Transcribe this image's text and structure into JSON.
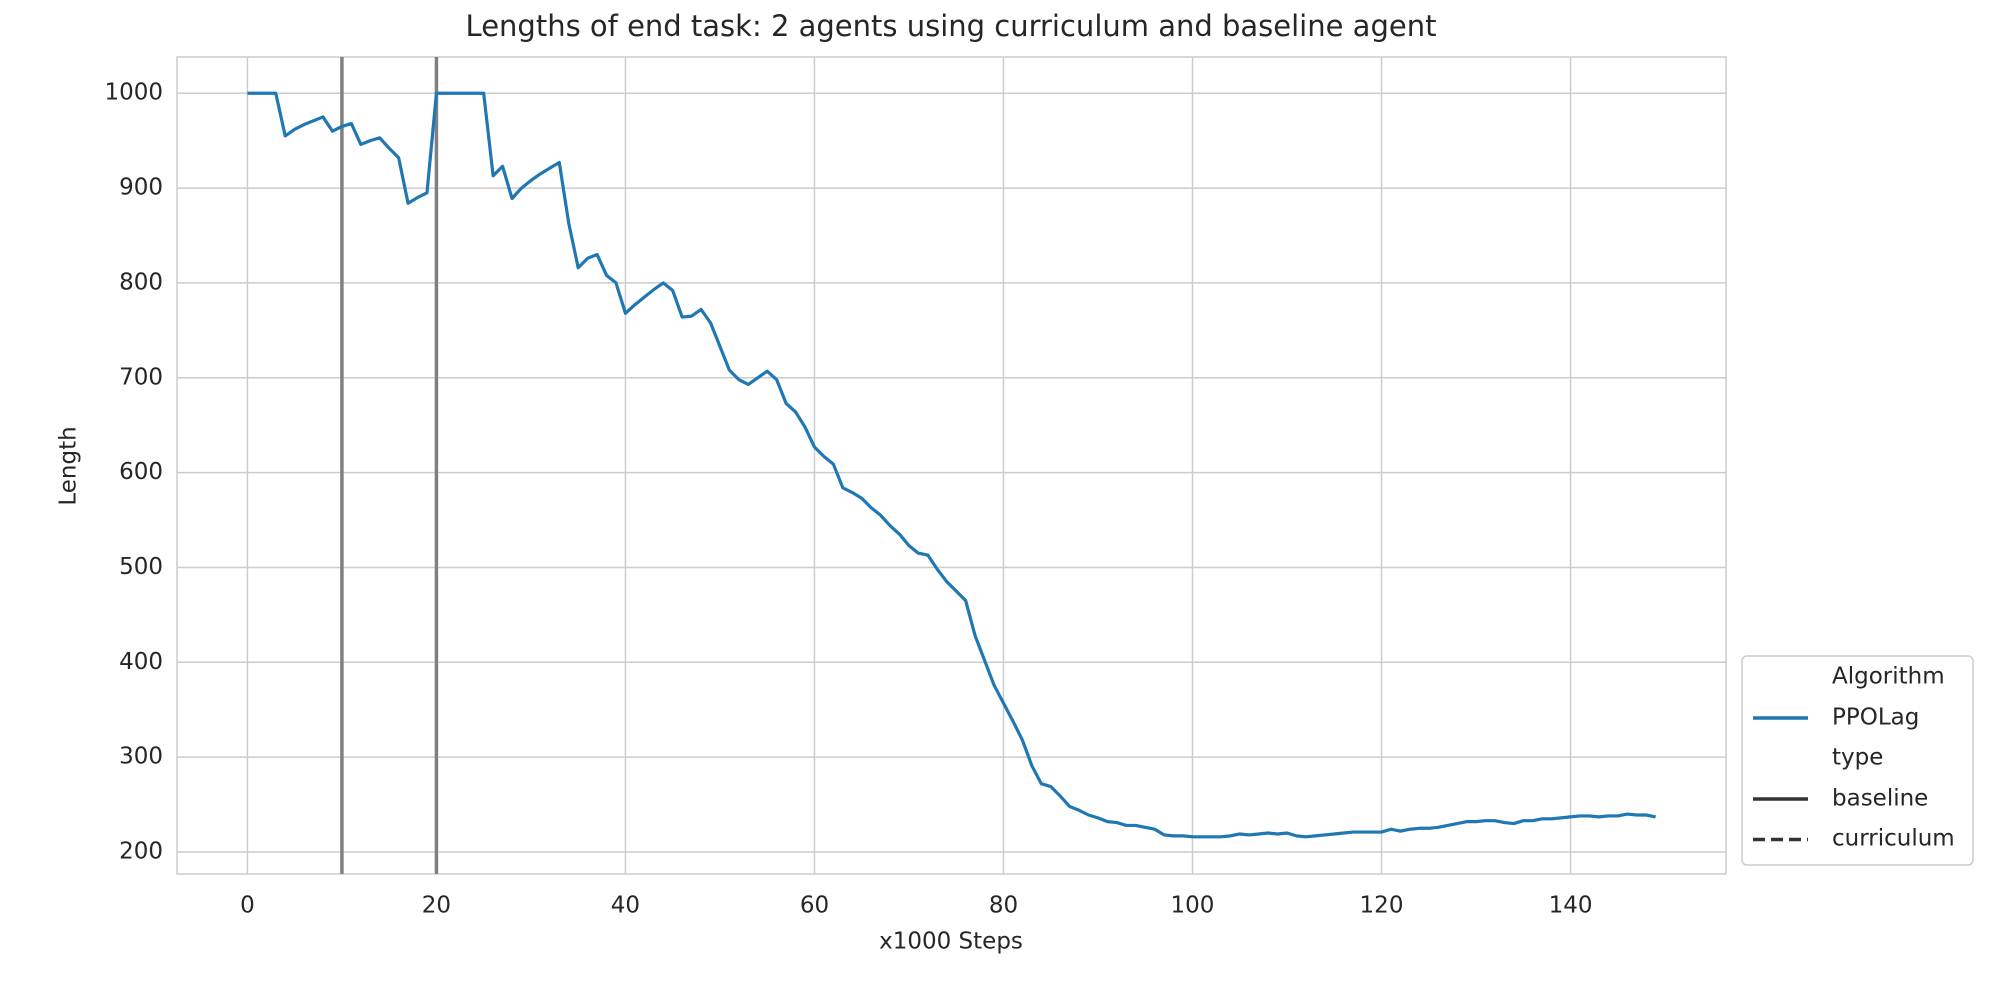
{
  "chart_data": {
    "type": "line",
    "title": "Lengths of end task: 2 agents using curriculum and baseline agent",
    "xlabel": "x1000 Steps",
    "ylabel": "Length",
    "xlim": [
      -7.45,
      156.45
    ],
    "ylim": [
      176.8,
      1038.2
    ],
    "xticks": [
      0,
      20,
      40,
      60,
      80,
      100,
      120,
      140
    ],
    "yticks": [
      200,
      300,
      400,
      500,
      600,
      700,
      800,
      900,
      1000
    ],
    "grid": true,
    "vlines": [
      10,
      20
    ],
    "vline_color": "#808080",
    "x": [
      0,
      1,
      2,
      3,
      4,
      5,
      6,
      7,
      8,
      9,
      10,
      11,
      12,
      13,
      14,
      15,
      16,
      17,
      18,
      19,
      20,
      21,
      22,
      23,
      24,
      25,
      26,
      27,
      28,
      29,
      30,
      31,
      32,
      33,
      34,
      35,
      36,
      37,
      38,
      39,
      40,
      41,
      42,
      43,
      44,
      45,
      46,
      47,
      48,
      49,
      50,
      51,
      52,
      53,
      54,
      55,
      56,
      57,
      58,
      59,
      60,
      61,
      62,
      63,
      64,
      65,
      66,
      67,
      68,
      69,
      70,
      71,
      72,
      73,
      74,
      75,
      76,
      77,
      78,
      79,
      80,
      81,
      82,
      83,
      84,
      85,
      86,
      87,
      88,
      89,
      90,
      91,
      92,
      93,
      94,
      95,
      96,
      97,
      98,
      99,
      100,
      101,
      102,
      103,
      104,
      105,
      106,
      107,
      108,
      109,
      110,
      111,
      112,
      113,
      114,
      115,
      116,
      117,
      118,
      119,
      120,
      121,
      122,
      123,
      124,
      125,
      126,
      127,
      128,
      129,
      130,
      131,
      132,
      133,
      134,
      135,
      136,
      137,
      138,
      139,
      140,
      141,
      142,
      143,
      144,
      145,
      146,
      147,
      148,
      149
    ],
    "series": [
      {
        "name": "PPOLag",
        "color": "#1f77b4",
        "style": "baseline",
        "values": [
          1000,
          1000,
          1000,
          1000,
          955,
          962,
          967,
          971,
          975,
          960,
          965,
          968,
          946,
          950,
          953,
          942,
          932,
          884,
          890,
          895,
          1000,
          1000,
          1000,
          1000,
          1000,
          1000,
          913,
          923,
          889,
          900,
          908,
          915,
          921,
          927,
          863,
          816,
          826,
          830,
          808,
          800,
          768,
          777,
          785,
          793,
          800,
          792,
          764,
          765,
          772,
          758,
          733,
          708,
          698,
          693,
          700,
          707,
          698,
          673,
          664,
          648,
          627,
          617,
          609,
          584,
          579,
          573,
          563,
          555,
          544,
          535,
          523,
          515,
          513,
          498,
          485,
          475,
          465,
          428,
          402,
          376,
          357,
          338,
          318,
          291,
          272,
          269,
          259,
          248,
          244,
          239,
          236,
          232,
          231,
          228,
          228,
          226,
          224,
          218,
          217,
          217,
          216,
          216,
          216,
          216,
          217,
          219,
          218,
          219,
          220,
          219,
          220,
          217,
          216,
          217,
          218,
          219,
          220,
          221,
          221,
          221,
          221,
          224,
          222,
          224,
          225,
          225,
          226,
          228,
          230,
          232,
          232,
          233,
          233,
          231,
          230,
          233,
          233,
          235,
          235,
          236,
          237,
          238,
          238,
          237,
          238,
          238,
          240,
          239,
          239,
          237
        ]
      }
    ],
    "legend": {
      "position": "lower right",
      "hue_title": "Algorithm",
      "style_title": "type",
      "styles": [
        {
          "name": "baseline",
          "dash": "solid"
        },
        {
          "name": "curriculum",
          "dash": "dashed"
        }
      ]
    }
  }
}
